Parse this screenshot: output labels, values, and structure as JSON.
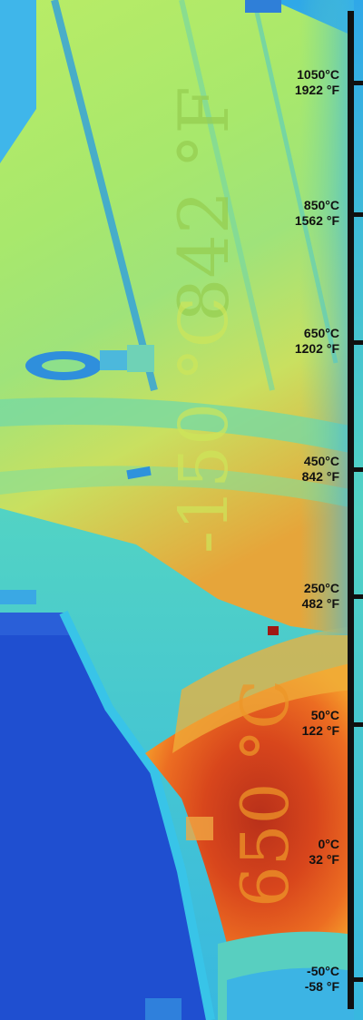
{
  "image_description_labels": {
    "overlay_top": "842 °F",
    "overlay_middle": "-150 °C",
    "overlay_bottom": "650 °C"
  },
  "scale": {
    "ticks": [
      {
        "c": "1050°C",
        "f": "1922 °F"
      },
      {
        "c": "850°C",
        "f": "1562 °F"
      },
      {
        "c": "650°C",
        "f": "1202 °F"
      },
      {
        "c": "450°C",
        "f": "842 °F"
      },
      {
        "c": "250°C",
        "f": "482 °F"
      },
      {
        "c": "50°C",
        "f": "122 °F"
      },
      {
        "c": "0°C",
        "f": "32 °F"
      },
      {
        "c": "-50°C",
        "f": "-58 °F"
      }
    ]
  }
}
